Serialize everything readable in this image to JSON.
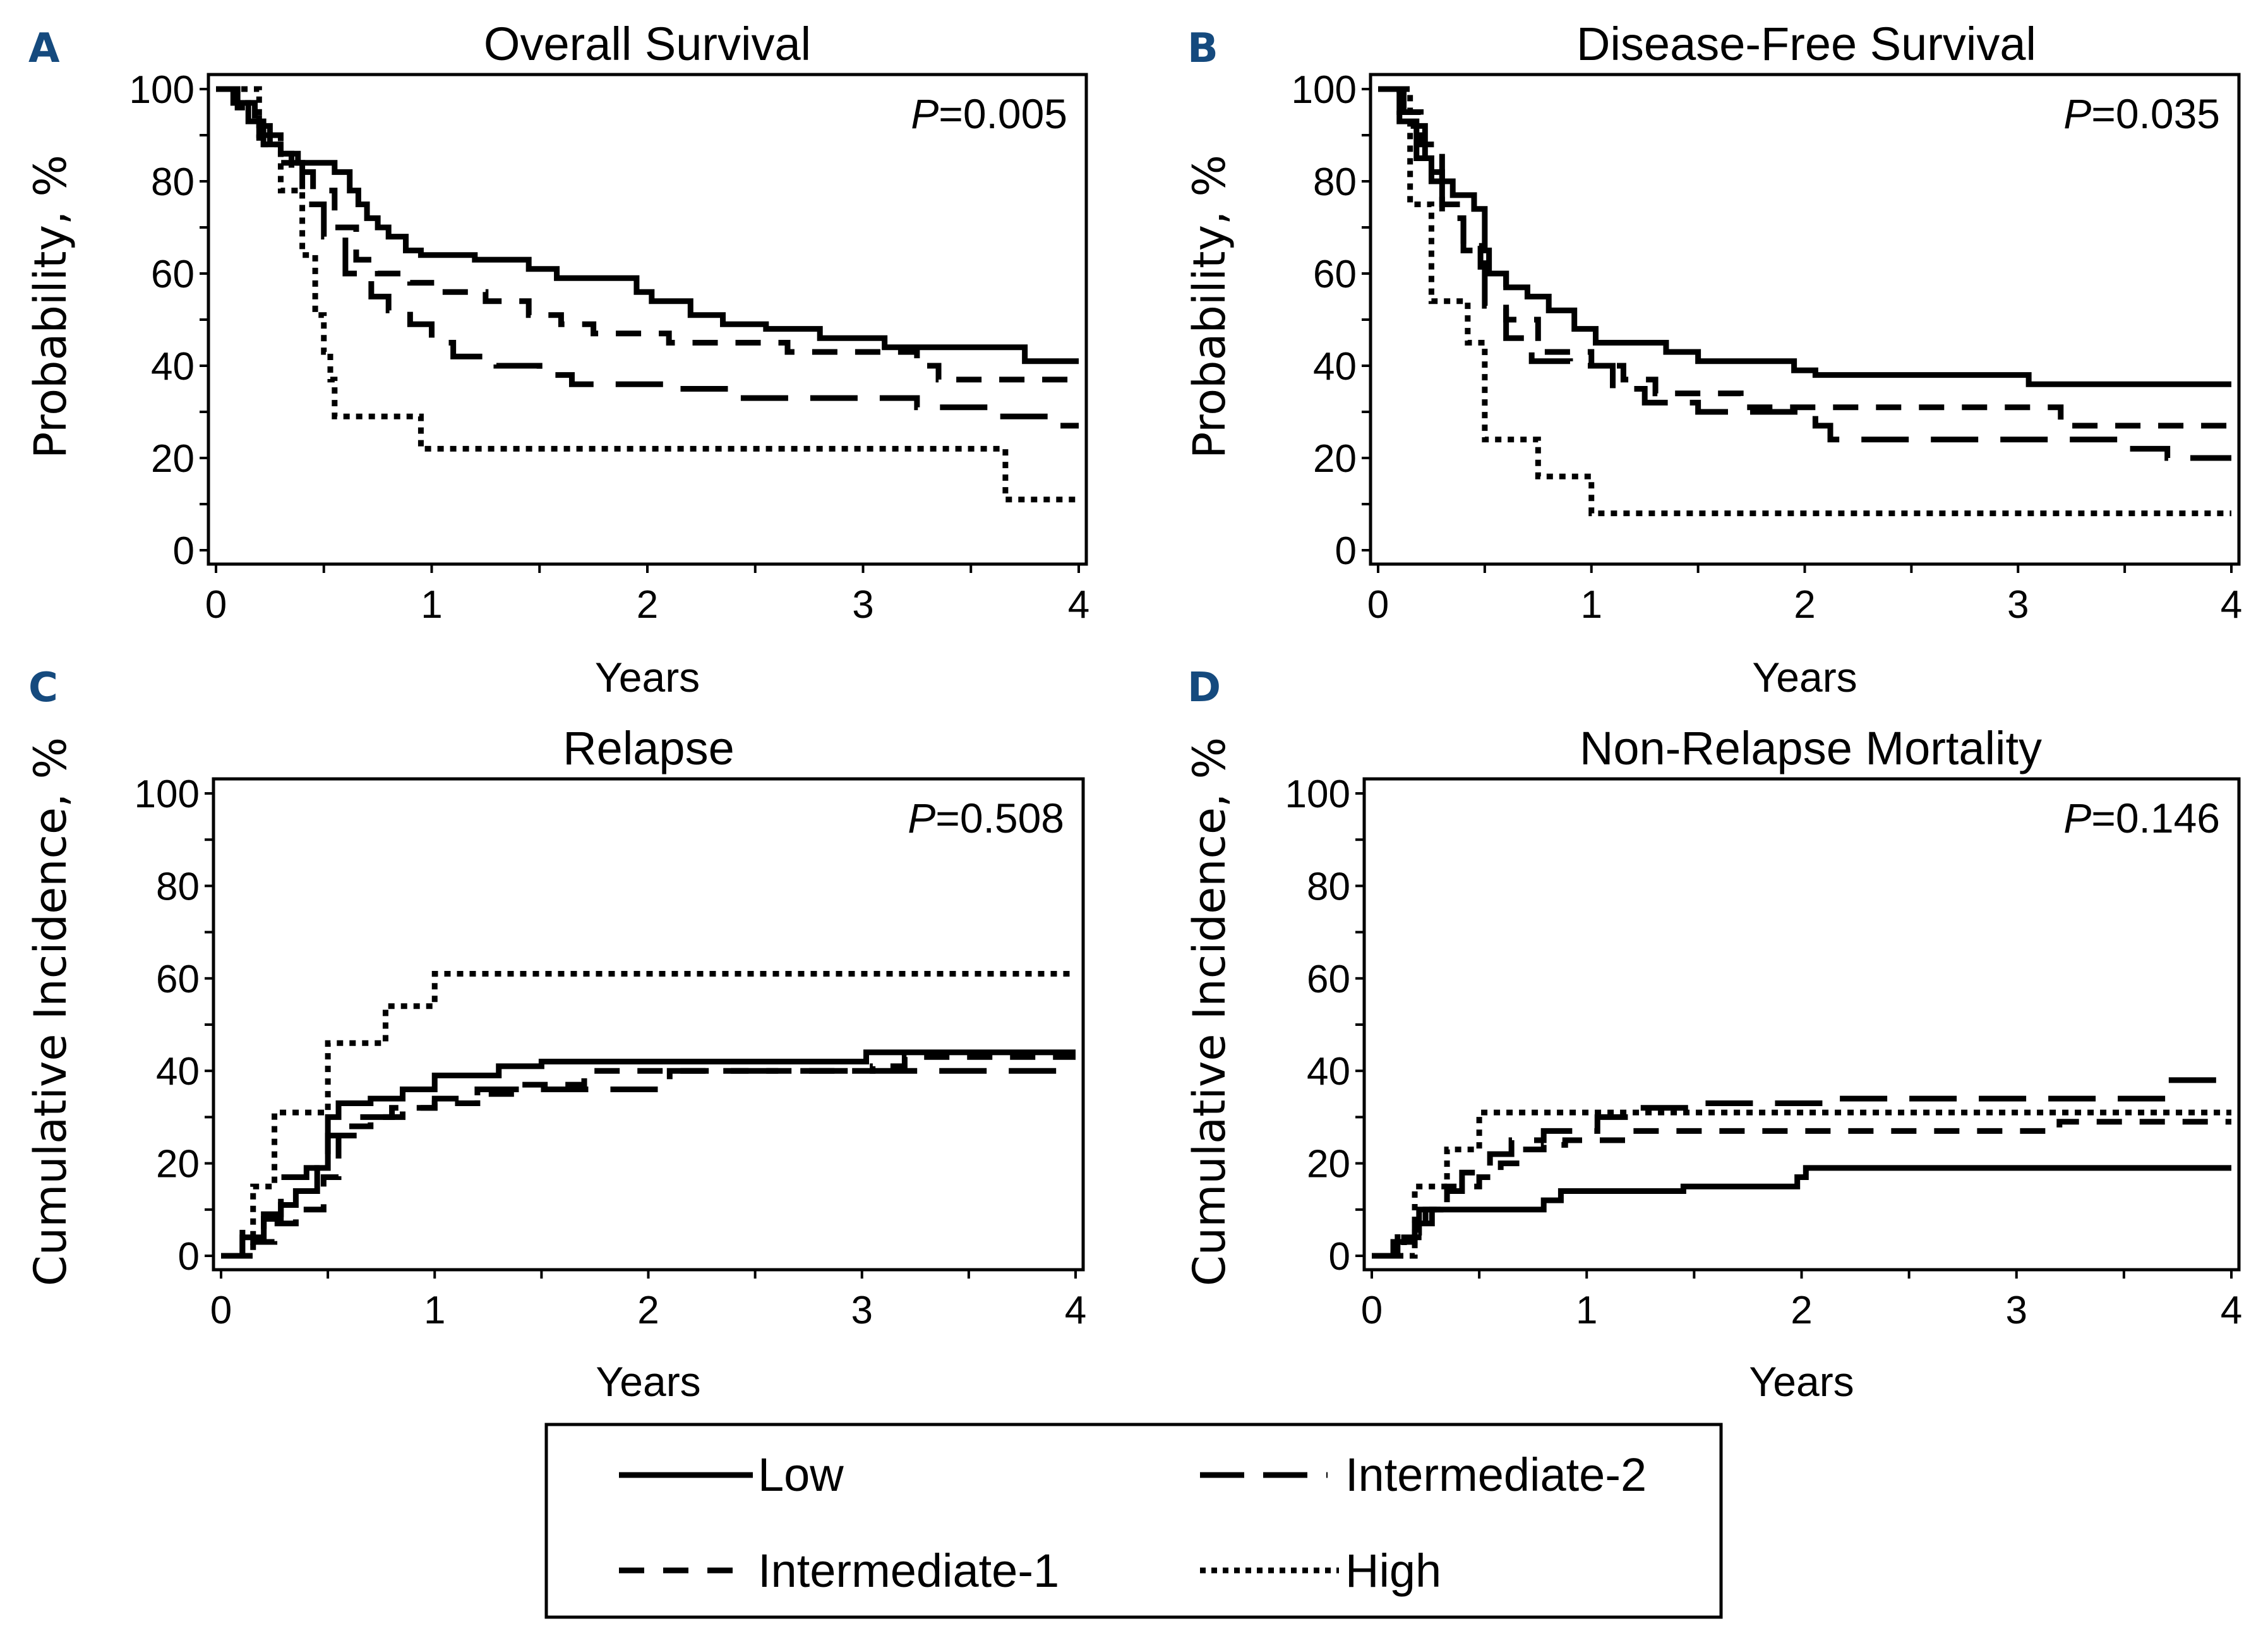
{
  "figure": {
    "panel_letter_color": "#154a7e",
    "line_color": "#000000"
  },
  "legend": {
    "items": [
      {
        "key": "low",
        "label": "Low",
        "style": "solid"
      },
      {
        "key": "int2",
        "label": "Intermediate-2",
        "style": "longdash"
      },
      {
        "key": "int1",
        "label": "Intermediate-1",
        "style": "dash"
      },
      {
        "key": "high",
        "label": "High",
        "style": "dot"
      }
    ]
  },
  "chart_data": [
    {
      "panel": "A",
      "type": "line",
      "step": true,
      "title": "Overall Survival",
      "xlabel": "Years",
      "ylabel": "Probability, %",
      "xlim": [
        0,
        4
      ],
      "ylim": [
        0,
        100
      ],
      "xticks": [
        0,
        1,
        2,
        3,
        4
      ],
      "yticks": [
        0,
        20,
        40,
        60,
        80,
        100
      ],
      "annotation": {
        "p_label": "P",
        "p_value": "=0.005"
      },
      "series": [
        {
          "name": "Low",
          "style": "solid",
          "x": [
            0,
            0.08,
            0.15,
            0.22,
            0.3,
            0.38,
            0.55,
            0.62,
            0.66,
            0.7,
            0.75,
            0.8,
            0.88,
            0.95,
            1.2,
            1.45,
            1.58,
            1.95,
            2.02,
            2.2,
            2.35,
            2.55,
            2.8,
            3.1,
            3.75,
            4.0
          ],
          "y": [
            100,
            97,
            93,
            88,
            86,
            84,
            82,
            78,
            75,
            72,
            70,
            68,
            65,
            64,
            63,
            61,
            59,
            56,
            54,
            51,
            49,
            48,
            46,
            44,
            41,
            41
          ]
        },
        {
          "name": "Intermediate-1",
          "style": "dash",
          "x": [
            0,
            0.1,
            0.18,
            0.25,
            0.35,
            0.45,
            0.55,
            0.65,
            0.75,
            0.9,
            1.05,
            1.25,
            1.45,
            1.6,
            1.75,
            2.1,
            2.65,
            3.25,
            3.35,
            4.0
          ],
          "y": [
            100,
            97,
            92,
            86,
            82,
            78,
            70,
            63,
            60,
            58,
            56,
            54,
            51,
            49,
            47,
            45,
            43,
            40,
            37,
            37
          ]
        },
        {
          "name": "Intermediate-2",
          "style": "longdash",
          "x": [
            0,
            0.1,
            0.2,
            0.3,
            0.4,
            0.5,
            0.6,
            0.72,
            0.8,
            0.9,
            1.0,
            1.1,
            1.3,
            1.5,
            1.65,
            2.1,
            2.4,
            3.25,
            3.6,
            3.9,
            4.0
          ],
          "y": [
            100,
            96,
            90,
            84,
            75,
            68,
            60,
            55,
            52,
            49,
            45,
            42,
            40,
            38,
            36,
            35,
            33,
            31,
            29,
            27,
            27
          ]
        },
        {
          "name": "High",
          "style": "dot",
          "x": [
            0,
            0.2,
            0.3,
            0.4,
            0.46,
            0.5,
            0.53,
            0.55,
            0.95,
            3.66,
            4.0
          ],
          "y": [
            100,
            88,
            78,
            64,
            51,
            43,
            37,
            29,
            22,
            11,
            11
          ]
        }
      ]
    },
    {
      "panel": "B",
      "type": "line",
      "step": true,
      "title": "Disease-Free Survival",
      "xlabel": "Years",
      "ylabel": "Probability, %",
      "xlim": [
        0,
        4
      ],
      "ylim": [
        0,
        100
      ],
      "xticks": [
        0,
        1,
        2,
        3,
        4
      ],
      "yticks": [
        0,
        20,
        40,
        60,
        80,
        100
      ],
      "annotation": {
        "p_label": "P",
        "p_value": "=0.035"
      },
      "series": [
        {
          "name": "Low",
          "style": "solid",
          "x": [
            0,
            0.1,
            0.18,
            0.25,
            0.35,
            0.45,
            0.5,
            0.52,
            0.6,
            0.7,
            0.8,
            0.92,
            1.02,
            1.35,
            1.5,
            1.95,
            2.05,
            3.05,
            4.0
          ],
          "y": [
            100,
            93,
            85,
            80,
            77,
            74,
            65,
            60,
            57,
            55,
            52,
            48,
            45,
            43,
            41,
            39,
            38,
            36,
            36
          ]
        },
        {
          "name": "Intermediate-1",
          "style": "dash",
          "x": [
            0,
            0.1,
            0.2,
            0.3,
            0.4,
            0.48,
            0.6,
            0.75,
            1.0,
            1.15,
            1.3,
            1.7,
            3.2,
            4.0
          ],
          "y": [
            100,
            95,
            88,
            75,
            66,
            60,
            50,
            43,
            40,
            37,
            34,
            31,
            27,
            27
          ]
        },
        {
          "name": "Intermediate-2",
          "style": "longdash",
          "x": [
            0,
            0.12,
            0.22,
            0.3,
            0.4,
            0.5,
            0.6,
            0.72,
            0.9,
            1.1,
            1.25,
            1.5,
            2.05,
            2.12,
            3.5,
            3.7,
            4.0
          ],
          "y": [
            100,
            92,
            82,
            72,
            65,
            53,
            46,
            41,
            40,
            35,
            32,
            30,
            27,
            24,
            22,
            20,
            20
          ]
        },
        {
          "name": "High",
          "style": "dot",
          "x": [
            0,
            0.15,
            0.25,
            0.42,
            0.5,
            0.75,
            1.0,
            4.0
          ],
          "y": [
            100,
            75,
            54,
            45,
            24,
            16,
            8,
            8
          ]
        }
      ]
    },
    {
      "panel": "C",
      "type": "line",
      "step": true,
      "title": "Relapse",
      "xlabel": "Years",
      "ylabel": "Cumulative Incidence, %",
      "xlim": [
        0,
        4
      ],
      "ylim": [
        0,
        100
      ],
      "xticks": [
        0,
        1,
        2,
        3,
        4
      ],
      "yticks": [
        0,
        20,
        40,
        60,
        80,
        100
      ],
      "annotation": {
        "p_label": "P",
        "p_value": "=0.508"
      },
      "series": [
        {
          "name": "Low",
          "style": "solid",
          "x": [
            0,
            0.1,
            0.2,
            0.28,
            0.35,
            0.45,
            0.5,
            0.55,
            0.7,
            0.85,
            1.0,
            1.3,
            1.5,
            3.02,
            4.0
          ],
          "y": [
            0,
            4,
            8,
            11,
            14,
            19,
            30,
            33,
            34,
            36,
            39,
            41,
            42,
            44,
            44
          ]
        },
        {
          "name": "Intermediate-1",
          "style": "dash",
          "x": [
            0,
            0.15,
            0.25,
            0.35,
            0.48,
            0.55,
            0.7,
            0.85,
            1.0,
            1.2,
            1.4,
            1.7,
            3.05,
            3.2,
            4.0
          ],
          "y": [
            0,
            3,
            7,
            10,
            17,
            28,
            30,
            32,
            33,
            35,
            37,
            40,
            41,
            43,
            43
          ]
        },
        {
          "name": "Intermediate-2",
          "style": "longdash",
          "x": [
            0,
            0.1,
            0.2,
            0.28,
            0.4,
            0.5,
            0.65,
            0.8,
            1.0,
            1.2,
            2.05,
            2.1,
            4.0
          ],
          "y": [
            0,
            5,
            9,
            17,
            19,
            26,
            30,
            32,
            34,
            36,
            38,
            40,
            40
          ]
        },
        {
          "name": "High",
          "style": "dot",
          "x": [
            0,
            0.15,
            0.25,
            0.5,
            0.77,
            1.0,
            4.0
          ],
          "y": [
            0,
            15,
            31,
            46,
            54,
            61,
            61
          ]
        }
      ]
    },
    {
      "panel": "D",
      "type": "line",
      "step": true,
      "title": "Non-Relapse Mortality",
      "xlabel": "Years",
      "ylabel": "Cumulative Incidence, %",
      "xlim": [
        0,
        4
      ],
      "ylim": [
        0,
        100
      ],
      "xticks": [
        0,
        1,
        2,
        3,
        4
      ],
      "yticks": [
        0,
        20,
        40,
        60,
        80,
        100
      ],
      "annotation": {
        "p_label": "P",
        "p_value": "=0.146"
      },
      "series": [
        {
          "name": "Low",
          "style": "solid",
          "x": [
            0,
            0.1,
            0.2,
            0.28,
            0.7,
            0.8,
            0.88,
            1.45,
            1.98,
            2.02,
            4.0
          ],
          "y": [
            0,
            3,
            7,
            10,
            10,
            12,
            14,
            15,
            17,
            19,
            19
          ]
        },
        {
          "name": "Intermediate-1",
          "style": "dash",
          "x": [
            0,
            0.15,
            0.25,
            0.35,
            0.5,
            0.6,
            0.7,
            0.8,
            0.9,
            1.2,
            3.2,
            4.0
          ],
          "y": [
            0,
            4,
            10,
            15,
            17,
            20,
            23,
            24,
            25,
            27,
            29,
            29
          ]
        },
        {
          "name": "Intermediate-2",
          "style": "longdash",
          "x": [
            0,
            0.12,
            0.22,
            0.32,
            0.42,
            0.55,
            0.65,
            0.8,
            1.05,
            1.2,
            1.5,
            2.1,
            3.7,
            4.0
          ],
          "y": [
            0,
            5,
            10,
            14,
            18,
            22,
            25,
            27,
            30,
            32,
            33,
            34,
            38,
            38
          ]
        },
        {
          "name": "High",
          "style": "dot",
          "x": [
            0,
            0.2,
            0.35,
            0.5,
            4.0
          ],
          "y": [
            0,
            15,
            23,
            31,
            31
          ]
        }
      ]
    }
  ]
}
